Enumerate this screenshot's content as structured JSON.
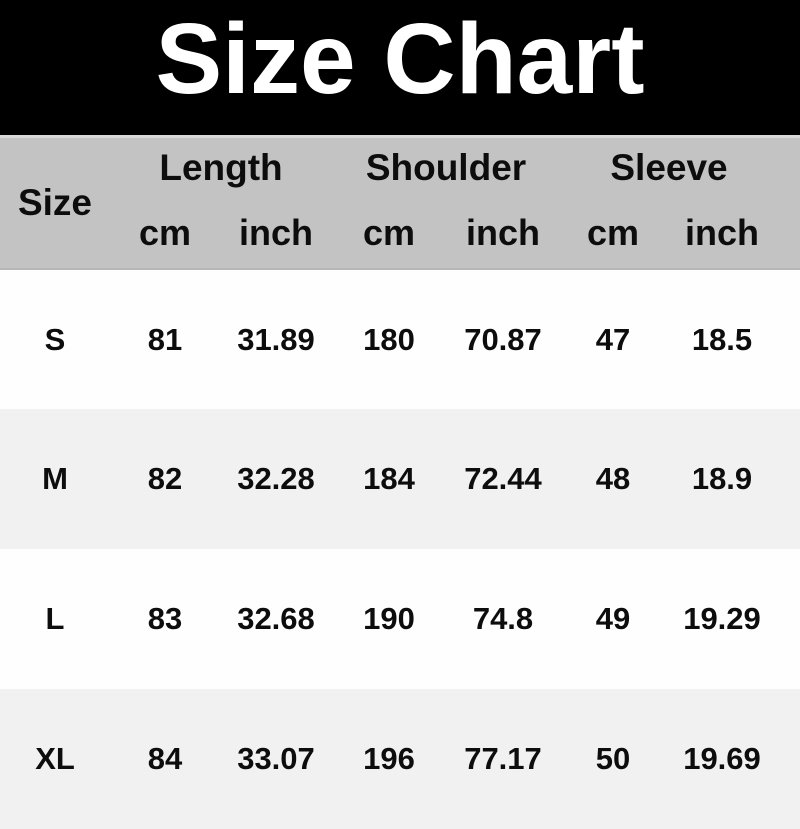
{
  "title": "Size Chart",
  "table": {
    "size_header": "Size",
    "groups": [
      {
        "label": "Length"
      },
      {
        "label": "Shoulder"
      },
      {
        "label": "Sleeve"
      }
    ],
    "units": [
      "cm",
      "inch",
      "cm",
      "inch",
      "cm",
      "inch"
    ],
    "rows": [
      {
        "size": "S",
        "values": [
          "81",
          "31.89",
          "180",
          "70.87",
          "47",
          "18.5"
        ]
      },
      {
        "size": "M",
        "values": [
          "82",
          "32.28",
          "184",
          "72.44",
          "48",
          "18.9"
        ]
      },
      {
        "size": "L",
        "values": [
          "83",
          "32.68",
          "190",
          "74.8",
          "49",
          "19.29"
        ]
      },
      {
        "size": "XL",
        "values": [
          "84",
          "33.07",
          "196",
          "77.17",
          "50",
          "19.69"
        ]
      }
    ]
  },
  "chart_data": {
    "type": "table",
    "title": "Size Chart",
    "columns": [
      "Size",
      "Length cm",
      "Length inch",
      "Shoulder cm",
      "Shoulder inch",
      "Sleeve cm",
      "Sleeve inch"
    ],
    "rows": [
      [
        "S",
        81,
        31.89,
        180,
        70.87,
        47,
        18.5
      ],
      [
        "M",
        82,
        32.28,
        184,
        72.44,
        48,
        18.9
      ],
      [
        "L",
        83,
        32.68,
        190,
        74.8,
        49,
        19.29
      ],
      [
        "XL",
        84,
        33.07,
        196,
        77.17,
        50,
        19.69
      ]
    ]
  },
  "colors": {
    "title_bar_bg": "#000000",
    "title_text": "#ffffff",
    "header_bg": "#c3c3c3",
    "row_bg": "#fefefe",
    "row_alt_bg": "#f0f1f0",
    "text": "#0d0d0d"
  }
}
